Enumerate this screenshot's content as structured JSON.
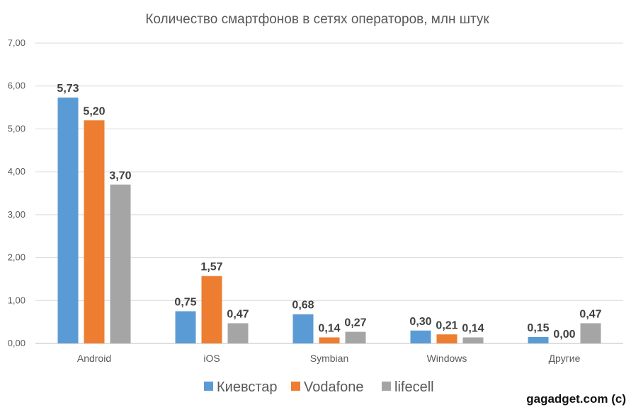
{
  "chart_data": {
    "type": "bar",
    "title": "Количество смартфонов в сетях операторов, млн штук",
    "xlabel": "",
    "ylabel": "",
    "ylim": [
      0,
      7
    ],
    "yticks": [
      "0,00",
      "1,00",
      "2,00",
      "3,00",
      "4,00",
      "5,00",
      "6,00",
      "7,00"
    ],
    "grid": true,
    "legend_position": "bottom",
    "categories": [
      "Android",
      "iOS",
      "Symbian",
      "Windows",
      "Другие"
    ],
    "series": [
      {
        "name": "Киевстар",
        "color": "#5B9BD5",
        "values": [
          5.73,
          0.75,
          0.68,
          0.3,
          0.15
        ],
        "labels": [
          "5,73",
          "0,75",
          "0,68",
          "0,30",
          "0,15"
        ]
      },
      {
        "name": "Vodafone",
        "color": "#ED7D31",
        "values": [
          5.2,
          1.57,
          0.14,
          0.21,
          0.0
        ],
        "labels": [
          "5,20",
          "1,57",
          "0,14",
          "0,21",
          "0,00"
        ]
      },
      {
        "name": "lifecell",
        "color": "#A5A5A5",
        "values": [
          3.7,
          0.47,
          0.27,
          0.14,
          0.47
        ],
        "labels": [
          "3,70",
          "0,47",
          "0,27",
          "0,14",
          "0,47"
        ]
      }
    ],
    "watermark": "gagadget.com (c)"
  }
}
